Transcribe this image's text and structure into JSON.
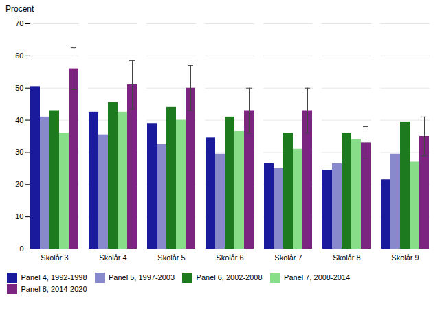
{
  "chart_data": {
    "type": "bar",
    "ylabel": "Procent",
    "categories": [
      "Skolår 3",
      "Skolår 4",
      "Skolår 5",
      "Skolår 6",
      "Skolår 7",
      "Skolår 8",
      "Skolår 9"
    ],
    "series": [
      {
        "name": "Panel 4, 1992-1998",
        "color": "#1A1A9C",
        "values": [
          50.5,
          42.5,
          39.0,
          34.5,
          26.5,
          24.5,
          21.5
        ]
      },
      {
        "name": "Panel 5, 1997-2003",
        "color": "#8888CC",
        "values": [
          41.0,
          35.5,
          32.5,
          29.5,
          25.0,
          26.5,
          29.5
        ]
      },
      {
        "name": "Panel 6, 2002-2008",
        "color": "#1E7A1E",
        "values": [
          43.0,
          45.5,
          44.0,
          41.0,
          36.0,
          36.0,
          39.5
        ]
      },
      {
        "name": "Panel 7, 2008-2014",
        "color": "#88DD88",
        "values": [
          36.0,
          42.5,
          40.0,
          36.5,
          31.0,
          34.0,
          27.0
        ]
      },
      {
        "name": "Panel 8, 2014-2020",
        "color": "#7B2580",
        "values": [
          56.0,
          51.0,
          50.0,
          43.0,
          43.0,
          33.0,
          35.0
        ],
        "errors": [
          6.5,
          7.5,
          7.0,
          7.0,
          7.0,
          5.0,
          6.0
        ]
      }
    ],
    "ylim": [
      0,
      70
    ],
    "yticks": [
      0,
      10,
      20,
      30,
      40,
      50,
      60,
      70
    ],
    "grid": true,
    "legend": "bottom"
  }
}
